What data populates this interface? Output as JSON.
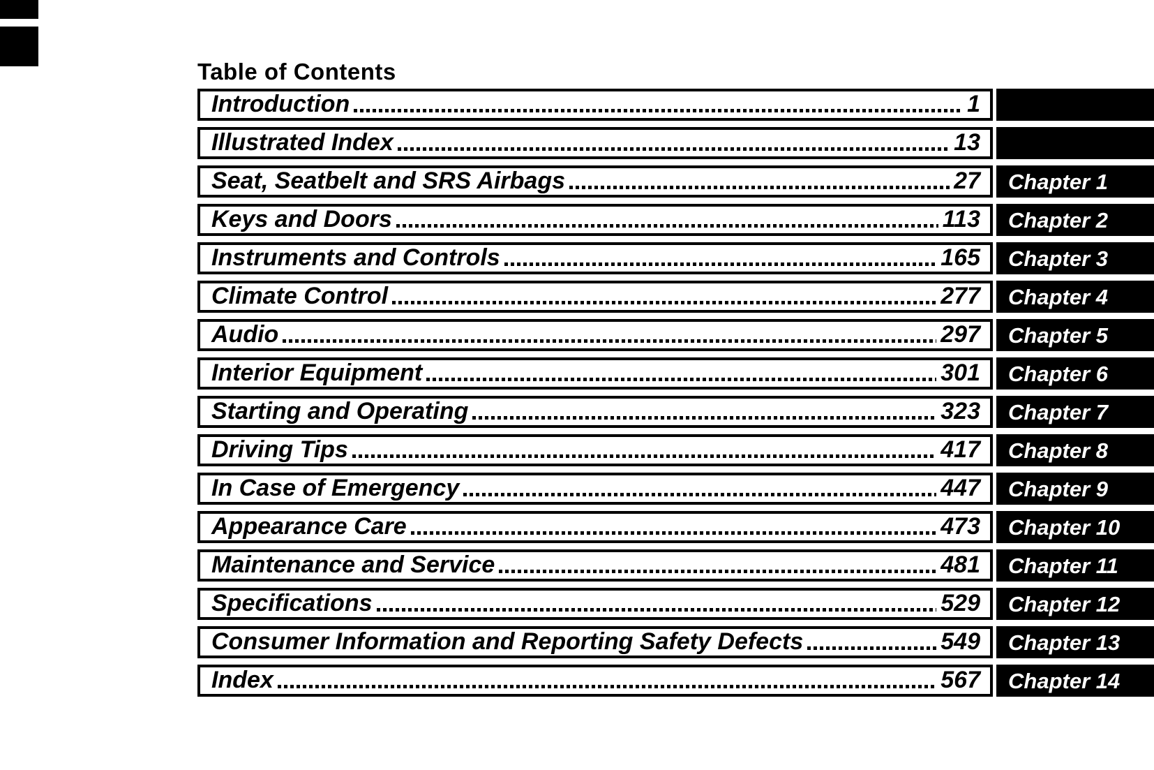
{
  "page": {
    "title": "Table of Contents"
  },
  "colors": {
    "ink": "#000000",
    "paper": "#ffffff",
    "tab_background": "#000000",
    "tab_text": "#ffffff"
  },
  "toc": {
    "entries": [
      {
        "title": "Introduction",
        "page": "1",
        "chapter": ""
      },
      {
        "title": "Illustrated Index",
        "page": "13",
        "chapter": ""
      },
      {
        "title": "Seat, Seatbelt and SRS Airbags",
        "page": "27",
        "chapter": "Chapter 1"
      },
      {
        "title": "Keys and Doors",
        "page": "113",
        "chapter": "Chapter 2"
      },
      {
        "title": "Instruments and Controls",
        "page": "165",
        "chapter": "Chapter 3"
      },
      {
        "title": "Climate Control",
        "page": "277",
        "chapter": "Chapter 4"
      },
      {
        "title": "Audio",
        "page": "297",
        "chapter": "Chapter 5"
      },
      {
        "title": "Interior Equipment",
        "page": "301",
        "chapter": "Chapter 6"
      },
      {
        "title": "Starting and Operating",
        "page": "323",
        "chapter": "Chapter 7"
      },
      {
        "title": "Driving Tips",
        "page": "417",
        "chapter": "Chapter 8"
      },
      {
        "title": "In Case of Emergency",
        "page": "447",
        "chapter": "Chapter 9"
      },
      {
        "title": "Appearance Care",
        "page": "473",
        "chapter": "Chapter 10"
      },
      {
        "title": "Maintenance and Service",
        "page": "481",
        "chapter": "Chapter 11"
      },
      {
        "title": "Specifications",
        "page": "529",
        "chapter": "Chapter 12"
      },
      {
        "title": "Consumer Information and Reporting Safety Defects",
        "page": "549",
        "chapter": "Chapter 13"
      },
      {
        "title": "Index",
        "page": "567",
        "chapter": "Chapter 14"
      }
    ]
  }
}
